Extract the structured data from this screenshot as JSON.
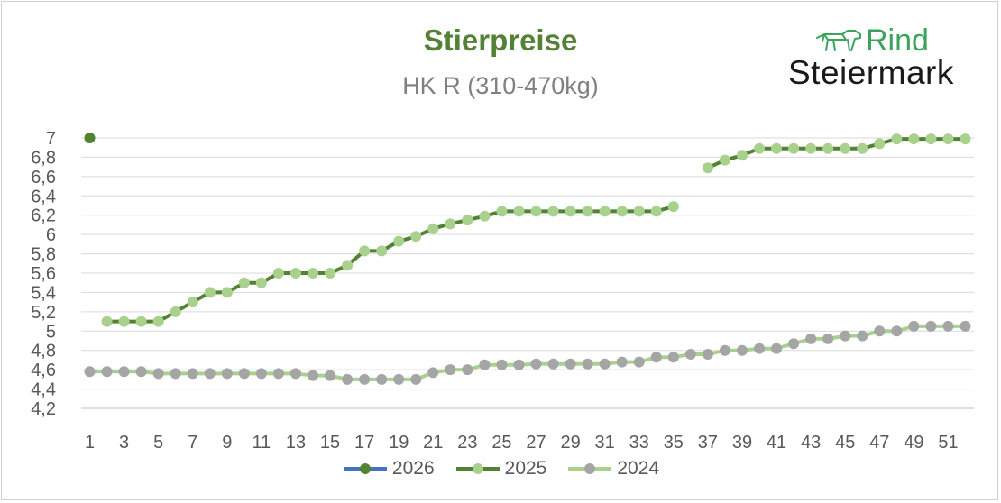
{
  "title": "Stierpreise",
  "subtitle": "HK R (310-470kg)",
  "logo": {
    "line1": "Rind",
    "line2": "Steiermark"
  },
  "colors": {
    "s2026": "#4472c4",
    "s2026_marker": "#548235",
    "s2025": "#548235",
    "s2025_marker": "#a9d18e",
    "s2024": "#a9d18e",
    "s2024_marker": "#a5a5a5"
  },
  "chart_data": {
    "type": "line",
    "ylim": [
      4.2,
      7.0
    ],
    "yticks": [
      "4,2",
      "4,4",
      "4,6",
      "4,8",
      "5",
      "5,2",
      "5,4",
      "5,6",
      "5,8",
      "6",
      "6,2",
      "6,4",
      "6,6",
      "6,8",
      "7"
    ],
    "xticks": [
      "1",
      "3",
      "5",
      "7",
      "9",
      "11",
      "13",
      "15",
      "17",
      "19",
      "21",
      "23",
      "25",
      "27",
      "29",
      "31",
      "33",
      "35",
      "37",
      "39",
      "41",
      "43",
      "45",
      "47",
      "49",
      "51"
    ],
    "grid": true,
    "legend_position": "bottom",
    "series": [
      {
        "name": "2026",
        "x": [
          1
        ],
        "values": [
          7.0
        ]
      },
      {
        "name": "2025",
        "x": [
          2,
          3,
          4,
          5,
          6,
          7,
          8,
          9,
          10,
          11,
          12,
          13,
          14,
          15,
          16,
          17,
          18,
          19,
          20,
          21,
          22,
          23,
          24,
          25,
          26,
          27,
          28,
          29,
          30,
          31,
          32,
          33,
          34,
          35,
          37,
          38,
          39,
          40,
          41,
          42,
          43,
          44,
          45,
          46,
          47,
          48,
          49,
          50,
          51,
          52
        ],
        "values": [
          5.1,
          5.1,
          5.1,
          5.1,
          5.2,
          5.3,
          5.4,
          5.4,
          5.5,
          5.5,
          5.6,
          5.6,
          5.6,
          5.6,
          5.68,
          5.83,
          5.83,
          5.93,
          5.98,
          6.06,
          6.11,
          6.15,
          6.19,
          6.24,
          6.24,
          6.24,
          6.24,
          6.24,
          6.24,
          6.24,
          6.24,
          6.24,
          6.24,
          6.29,
          6.69,
          6.77,
          6.82,
          6.89,
          6.89,
          6.89,
          6.89,
          6.89,
          6.89,
          6.89,
          6.94,
          6.99,
          6.99,
          6.99,
          6.99,
          6.99
        ]
      },
      {
        "name": "2024",
        "x": [
          1,
          2,
          3,
          4,
          5,
          6,
          7,
          8,
          9,
          10,
          11,
          12,
          13,
          14,
          15,
          16,
          17,
          18,
          19,
          20,
          21,
          22,
          23,
          24,
          25,
          26,
          27,
          28,
          29,
          30,
          31,
          32,
          33,
          34,
          35,
          36,
          37,
          38,
          39,
          40,
          41,
          42,
          43,
          44,
          45,
          46,
          47,
          48,
          49,
          50,
          51,
          52
        ],
        "values": [
          4.58,
          4.58,
          4.58,
          4.58,
          4.56,
          4.56,
          4.56,
          4.56,
          4.56,
          4.56,
          4.56,
          4.56,
          4.56,
          4.54,
          4.54,
          4.5,
          4.5,
          4.5,
          4.5,
          4.5,
          4.57,
          4.6,
          4.6,
          4.65,
          4.65,
          4.65,
          4.66,
          4.66,
          4.66,
          4.66,
          4.66,
          4.68,
          4.68,
          4.73,
          4.73,
          4.76,
          4.76,
          4.8,
          4.8,
          4.82,
          4.82,
          4.87,
          4.92,
          4.92,
          4.95,
          4.95,
          5.0,
          5.0,
          5.05,
          5.05,
          5.05,
          5.05
        ]
      }
    ]
  }
}
